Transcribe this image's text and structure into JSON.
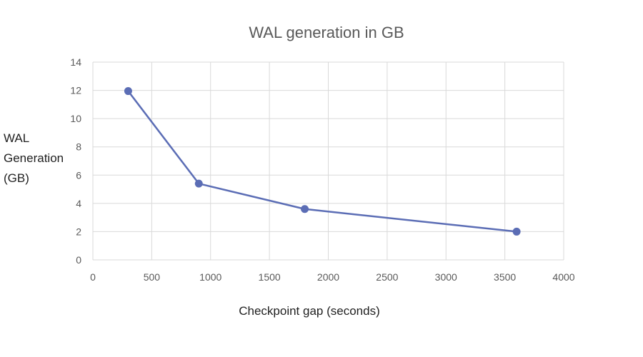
{
  "chart_data": {
    "type": "scatter",
    "title": "WAL generation in GB",
    "xlabel": "Checkpoint gap (seconds)",
    "ylabel_lines": [
      "WAL",
      "Generation",
      "(GB)"
    ],
    "xlim": [
      0,
      4000
    ],
    "ylim": [
      0,
      14
    ],
    "x_ticks": [
      0,
      500,
      1000,
      1500,
      2000,
      2500,
      3000,
      3500,
      4000
    ],
    "y_ticks": [
      0,
      2,
      4,
      6,
      8,
      10,
      12,
      14
    ],
    "grid": true,
    "legend": "none",
    "series": [
      {
        "color": "#5b6db5",
        "points": [
          {
            "x": 300,
            "y": 11.95
          },
          {
            "x": 900,
            "y": 5.4
          },
          {
            "x": 1800,
            "y": 3.6
          },
          {
            "x": 3600,
            "y": 2.0
          }
        ]
      }
    ]
  }
}
